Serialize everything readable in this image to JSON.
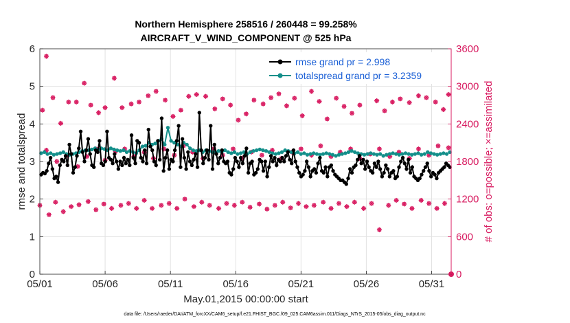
{
  "chart_data": {
    "type": "line",
    "title": "Northern Hemisphere 258516 / 260448 = 99.258%",
    "subtitle": "AIRCRAFT_V_WIND_COMPONENT @ 525 hPa",
    "xlabel": "May.01,2015 00:00:00 start",
    "ylabel_left": "rmse and totalspread",
    "ylabel_right": "# of obs: o=possible; ×=assimilated",
    "x_ticks": [
      "05/01",
      "05/06",
      "05/11",
      "05/16",
      "05/21",
      "05/26",
      "05/31"
    ],
    "y_left_ticks": [
      "0",
      "1",
      "2",
      "3",
      "4",
      "5",
      "6"
    ],
    "y_right_ticks": [
      "0",
      "600",
      "1200",
      "1800",
      "2400",
      "3000",
      "3600"
    ],
    "ylim_left": [
      0,
      6
    ],
    "ylim_right": [
      0,
      3600
    ],
    "xlim_days": [
      0,
      31.5
    ],
    "grid": true,
    "legend_position": "top-right",
    "footnote": "data file: /Users/raeder/DAI/ATM_forcXX/CAM6_setup/f.e21.FHIST_BGC.f09_025.CAM6assim.011/Diags_NTrS_2015-05/obs_diag_output.nc",
    "colors": {
      "rmse": "#000000",
      "spread": "#138f8a",
      "obs": "#d81b60",
      "legend_text": "#1a5fd6",
      "right_axis": "#d81b60"
    },
    "series": [
      {
        "name": "rmse",
        "legend": "rmse grand pr = 2.998",
        "values": [
          2.65,
          2.7,
          2.68,
          2.75,
          2.95,
          3.1,
          2.8,
          2.55,
          2.6,
          2.45,
          2.9,
          3.05,
          3.0,
          3.15,
          2.9,
          3.45,
          3.2,
          2.7,
          2.85,
          3.15,
          3.35,
          3.8,
          3.25,
          3.0,
          3.3,
          3.6,
          3.2,
          2.9,
          2.85,
          3.3,
          3.25,
          3.55,
          2.95,
          2.9,
          3.0,
          3.45,
          3.1,
          3.05,
          2.95,
          3.2,
          3.0,
          2.8,
          3.0,
          2.9,
          3.1,
          2.95,
          3.05,
          2.9,
          3.7,
          3.1,
          2.95,
          4.15,
          3.5,
          3.1,
          3.0,
          3.3,
          2.95,
          3.85,
          3.4,
          3.3,
          3.0,
          2.9,
          3.55,
          3.05,
          3.0,
          2.75,
          3.1,
          3.3,
          2.8,
          3.05,
          3.0,
          3.3,
          3.55,
          3.0,
          2.85,
          3.6,
          3.1,
          2.8,
          3.25,
          3.0,
          2.9,
          3.05,
          3.2,
          2.85,
          3.1,
          3.3,
          2.95,
          3.1,
          3.3,
          3.05,
          2.75,
          2.8,
          3.45,
          3.2,
          2.95,
          3.1,
          3.3,
          3.0,
          2.95,
          3.0,
          2.7,
          2.65,
          2.8,
          3.1,
          3.0,
          2.85,
          3.1,
          2.95,
          3.15,
          3.35,
          2.7,
          2.95,
          3.0,
          2.65,
          2.7,
          2.8,
          3.05,
          3.0,
          2.75,
          3.0,
          2.6,
          2.85,
          3.15,
          3.0,
          3.1,
          2.9,
          3.05,
          3.0,
          3.1,
          3.0,
          3.15,
          3.25,
          3.05,
          2.95,
          3.3,
          3.0,
          2.85,
          2.7,
          2.6,
          2.65,
          2.75,
          3.0,
          2.85,
          2.6,
          2.75,
          2.8,
          2.7,
          2.95,
          3.1,
          2.75,
          2.7,
          2.85,
          2.6,
          2.85,
          2.9,
          2.75,
          2.65,
          2.6,
          2.55,
          2.5,
          2.5,
          2.45,
          2.4,
          2.55,
          2.8,
          2.7,
          2.85,
          2.9,
          3.05,
          3.15,
          2.95,
          3.05,
          2.8,
          3.0,
          2.85,
          2.75,
          2.7,
          2.95,
          2.85,
          3.0,
          2.8,
          2.6,
          2.7,
          2.9,
          2.8,
          2.6,
          2.7,
          2.75,
          2.55,
          2.6,
          2.85,
          3.0,
          3.1,
          2.95,
          2.8,
          3.05,
          2.7,
          2.85,
          2.6,
          2.55,
          2.5,
          2.55,
          2.65,
          2.75,
          2.85,
          2.95,
          2.75,
          2.6,
          2.7,
          2.65,
          2.55,
          2.7,
          2.75,
          2.8,
          2.85,
          2.95,
          2.9,
          2.85
        ],
        "values_note": "rmse is plotted at 6-hourly resolution (4 per day); selected spikes listed separately",
        "spikes": [
          [
            5.1,
            3.8
          ],
          [
            7.5,
            3.55
          ],
          [
            12.15,
            4.3
          ],
          [
            13.1,
            3.95
          ],
          [
            10.6,
            3.95
          ],
          [
            9.4,
            4.15
          ]
        ]
      },
      {
        "name": "totalspread",
        "legend": "totalspread grand pr = 3.2359",
        "values": [
          3.22,
          3.25,
          3.2,
          3.22,
          3.18,
          3.2,
          3.22,
          3.25,
          3.2,
          3.18,
          3.2,
          3.22,
          3.25,
          3.28,
          3.3,
          3.3,
          3.32,
          3.35,
          3.32,
          3.35,
          3.33,
          3.3,
          3.35,
          3.32,
          3.3,
          3.28,
          3.3,
          3.25,
          3.28,
          3.25,
          3.22,
          3.3,
          3.4,
          3.42,
          3.5,
          3.45,
          3.48,
          3.55,
          3.6,
          3.45,
          3.9,
          3.55,
          3.5,
          3.45,
          3.4,
          3.5,
          3.45,
          3.35,
          3.3,
          3.28,
          3.3,
          3.25,
          3.3,
          3.28,
          3.25,
          3.25,
          3.28,
          3.25,
          3.3,
          3.25,
          3.22,
          3.25,
          3.2,
          3.22,
          3.25,
          3.2,
          3.25,
          3.28,
          3.3,
          3.32,
          3.3,
          3.28,
          3.25,
          3.22,
          3.2,
          3.22,
          3.25,
          3.3,
          3.28,
          3.25,
          3.22,
          3.25,
          3.2,
          3.22,
          3.18,
          3.2,
          3.22,
          3.2,
          3.18,
          3.2,
          3.22,
          3.2,
          3.18,
          3.15,
          3.18,
          3.2,
          3.22,
          3.25,
          3.28,
          3.25,
          3.22,
          3.2,
          3.18,
          3.2,
          3.22,
          3.2,
          3.18,
          3.2,
          3.15,
          3.18,
          3.2,
          3.22,
          3.2,
          3.18,
          3.2,
          3.22,
          3.2,
          3.18,
          3.2,
          3.22,
          3.18,
          3.2,
          3.25,
          3.22,
          3.2,
          3.18,
          3.2,
          3.22,
          3.2,
          3.25
        ]
      },
      {
        "name": "obs_possible",
        "axis": "right",
        "values_note": "daily pairs of counts; upper cluster ~2700-3100, lower ~1000-1200, middle ~1800-2000",
        "points": [
          [
            0.2,
            2620
          ],
          [
            0.5,
            3480
          ],
          [
            1.0,
            2820
          ],
          [
            1.6,
            2410
          ],
          [
            2.2,
            2750
          ],
          [
            2.8,
            2750
          ],
          [
            3.4,
            3050
          ],
          [
            3.9,
            2700
          ],
          [
            4.5,
            2580
          ],
          [
            5.0,
            2660
          ],
          [
            5.7,
            3130
          ],
          [
            6.3,
            2660
          ],
          [
            7.0,
            2720
          ],
          [
            7.6,
            2750
          ],
          [
            8.3,
            2850
          ],
          [
            8.9,
            2920
          ],
          [
            9.6,
            2780
          ],
          [
            10.2,
            2520
          ],
          [
            10.8,
            2620
          ],
          [
            11.4,
            2840
          ],
          [
            12.0,
            2870
          ],
          [
            12.7,
            2840
          ],
          [
            13.4,
            2640
          ],
          [
            14.0,
            2800
          ],
          [
            14.6,
            2700
          ],
          [
            15.2,
            2460
          ],
          [
            15.8,
            2560
          ],
          [
            16.4,
            2780
          ],
          [
            17.1,
            2720
          ],
          [
            17.7,
            2820
          ],
          [
            18.3,
            2880
          ],
          [
            18.9,
            2690
          ],
          [
            19.5,
            2810
          ],
          [
            20.1,
            2530
          ],
          [
            20.8,
            2920
          ],
          [
            21.4,
            2760
          ],
          [
            22.0,
            2480
          ],
          [
            22.7,
            2810
          ],
          [
            23.3,
            2680
          ],
          [
            23.9,
            2570
          ],
          [
            24.5,
            2700
          ],
          [
            25.1,
            3130
          ],
          [
            25.8,
            2770
          ],
          [
            26.4,
            2610
          ],
          [
            27.0,
            2750
          ],
          [
            27.6,
            2800
          ],
          [
            28.3,
            2740
          ],
          [
            29.0,
            2850
          ],
          [
            29.6,
            2820
          ],
          [
            30.3,
            2750
          ],
          [
            30.9,
            2630
          ],
          [
            31.3,
            2870
          ]
        ]
      },
      {
        "name": "obs_assimilated",
        "axis": "right",
        "points": [
          [
            0.0,
            1100
          ],
          [
            0.7,
            950
          ],
          [
            1.2,
            1150
          ],
          [
            1.8,
            1000
          ],
          [
            2.4,
            1080
          ],
          [
            3.0,
            1110
          ],
          [
            3.7,
            1160
          ],
          [
            4.3,
            1030
          ],
          [
            4.9,
            1120
          ],
          [
            5.5,
            1050
          ],
          [
            6.2,
            1100
          ],
          [
            6.8,
            1130
          ],
          [
            7.4,
            1050
          ],
          [
            8.0,
            1180
          ],
          [
            8.6,
            1050
          ],
          [
            9.3,
            1100
          ],
          [
            9.9,
            1130
          ],
          [
            10.5,
            1050
          ],
          [
            11.1,
            1200
          ],
          [
            11.8,
            1080
          ],
          [
            12.4,
            1150
          ],
          [
            13.0,
            1100
          ],
          [
            13.7,
            1050
          ],
          [
            14.3,
            1130
          ],
          [
            14.9,
            1100
          ],
          [
            15.5,
            1150
          ],
          [
            16.1,
            1070
          ],
          [
            16.8,
            1120
          ],
          [
            17.4,
            1040
          ],
          [
            18.0,
            1100
          ],
          [
            18.6,
            1150
          ],
          [
            19.2,
            1060
          ],
          [
            19.8,
            1130
          ],
          [
            20.4,
            1080
          ],
          [
            21.0,
            1100
          ],
          [
            21.7,
            1150
          ],
          [
            22.3,
            1050
          ],
          [
            22.9,
            1130
          ],
          [
            23.5,
            1080
          ],
          [
            24.1,
            1150
          ],
          [
            24.8,
            1050
          ],
          [
            25.4,
            1130
          ],
          [
            26.0,
            710
          ],
          [
            26.7,
            1100
          ],
          [
            27.3,
            1180
          ],
          [
            27.9,
            1120
          ],
          [
            28.5,
            1050
          ],
          [
            29.2,
            1180
          ],
          [
            29.8,
            1130
          ],
          [
            30.4,
            1050
          ],
          [
            31.0,
            1130
          ],
          [
            31.5,
            0
          ]
        ]
      },
      {
        "name": "obs_mid",
        "axis": "right",
        "points": [
          [
            0.5,
            1980
          ],
          [
            1.3,
            1800
          ],
          [
            2.1,
            1900
          ],
          [
            2.9,
            1720
          ],
          [
            3.6,
            1880
          ],
          [
            4.3,
            2000
          ],
          [
            5.0,
            1820
          ],
          [
            5.8,
            1960
          ],
          [
            6.5,
            2000
          ],
          [
            7.2,
            1880
          ],
          [
            8.0,
            1950
          ],
          [
            8.7,
            1850
          ],
          [
            9.5,
            2000
          ],
          [
            10.3,
            1900
          ],
          [
            11.0,
            2050
          ],
          [
            11.7,
            1950
          ],
          [
            12.5,
            1850
          ],
          [
            13.3,
            2000
          ],
          [
            14.0,
            1900
          ],
          [
            14.8,
            2000
          ],
          [
            15.5,
            1850
          ],
          [
            16.2,
            1950
          ],
          [
            17.0,
            1900
          ],
          [
            17.8,
            1980
          ],
          [
            18.5,
            1850
          ],
          [
            19.3,
            1950
          ],
          [
            20.0,
            2000
          ],
          [
            20.8,
            1900
          ],
          [
            21.5,
            2050
          ],
          [
            22.3,
            1880
          ],
          [
            23.0,
            1950
          ],
          [
            23.8,
            2000
          ],
          [
            24.5,
            1850
          ],
          [
            25.3,
            1920
          ],
          [
            26.0,
            2000
          ],
          [
            26.8,
            1880
          ],
          [
            27.5,
            1950
          ],
          [
            28.3,
            1850
          ],
          [
            29.0,
            2000
          ],
          [
            29.8,
            1900
          ],
          [
            30.5,
            2050
          ],
          [
            31.3,
            2020
          ]
        ]
      }
    ]
  }
}
